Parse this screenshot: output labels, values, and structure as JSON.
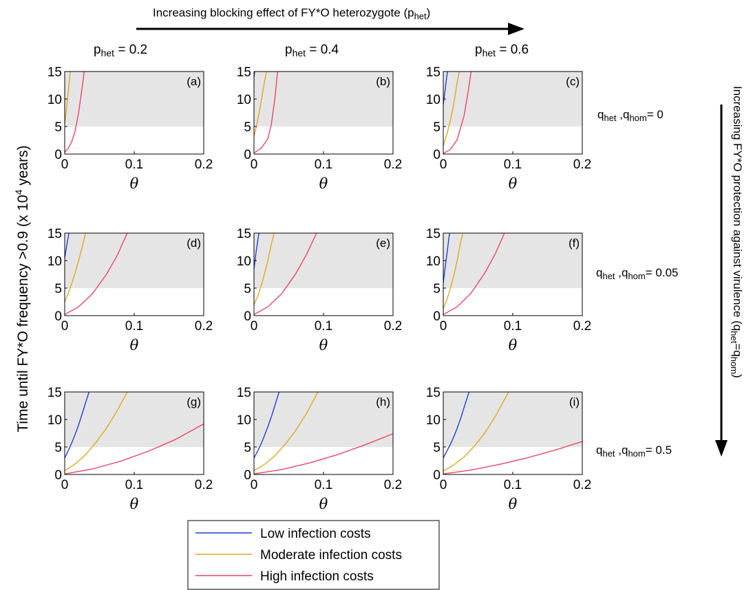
{
  "header": {
    "top_arrow_text": "Increasing blocking effect of FY*O heterozygote (p",
    "top_arrow_sub": "het",
    "top_arrow_close": ")",
    "column_labels": [
      {
        "p": "p",
        "sub": "het",
        "rest": " = 0.2"
      },
      {
        "p": "p",
        "sub": "het",
        "rest": " = 0.4"
      },
      {
        "p": "p",
        "sub": "het",
        "rest": " = 0.6"
      }
    ],
    "right_arrow_text": "Increasing FY*O protection against virulence (q",
    "right_arrow_sub1": "het",
    "right_arrow_eq": "=q",
    "right_arrow_sub2": "hom",
    "right_arrow_close": ")",
    "row_labels": [
      {
        "a": "q",
        "s1": "het",
        "mid": " ,q",
        "s2": "hom",
        "rest": "= 0"
      },
      {
        "a": "q",
        "s1": "het",
        "mid": " ,q",
        "s2": "hom",
        "rest": "= 0.05"
      },
      {
        "a": "q",
        "s1": "het",
        "mid": " ,q",
        "s2": "hom",
        "rest": "= 0.5"
      }
    ]
  },
  "y_axis_label": {
    "main": "Time until FY*O frequency >0.9 (x 10",
    "sup": "4",
    "rest": " years)"
  },
  "legend": {
    "entries": [
      {
        "label": "Low infection costs",
        "color": "#1f3fd9"
      },
      {
        "label": "Moderate infection costs",
        "color": "#e0a81e"
      },
      {
        "label": "High infection costs",
        "color": "#ee4466"
      }
    ]
  },
  "chart_data": {
    "type": "line",
    "xlabel": "θ",
    "xlim": [
      0,
      0.2
    ],
    "ylim": [
      0,
      15
    ],
    "xticks": [
      "0",
      "0.1",
      "0.2"
    ],
    "yticks": [
      "0",
      "5",
      "10",
      "15"
    ],
    "shaded_band": [
      5,
      15
    ],
    "shade_color": "#e5e5e5",
    "series_colors": [
      "#1f3fd9",
      "#e0a81e",
      "#ee4466"
    ],
    "panels": [
      {
        "label": "(a)",
        "series": [
          {
            "x": [
              0,
              0.0005
            ],
            "y": [
              15,
              15
            ]
          },
          {
            "x": [
              0,
              0.002,
              0.004,
              0.006,
              0.008
            ],
            "y": [
              5.5,
              7.5,
              10,
              12.5,
              15
            ]
          },
          {
            "x": [
              0,
              0.005,
              0.01,
              0.015,
              0.02,
              0.025,
              0.028
            ],
            "y": [
              0.3,
              1.0,
              2.2,
              4.2,
              7.5,
              12,
              15
            ]
          }
        ]
      },
      {
        "label": "(b)",
        "series": [
          {
            "x": [
              0,
              0.001
            ],
            "y": [
              14,
              15
            ]
          },
          {
            "x": [
              0,
              0.003,
              0.007,
              0.011,
              0.015,
              0.018
            ],
            "y": [
              3.2,
              4.8,
              7.2,
              10,
              13,
              15
            ]
          },
          {
            "x": [
              0,
              0.01,
              0.02,
              0.025,
              0.03,
              0.034
            ],
            "y": [
              0.2,
              1.0,
              2.8,
              5.5,
              10,
              15
            ]
          }
        ]
      },
      {
        "label": "(c)",
        "series": [
          {
            "x": [
              0,
              0.002,
              0.004,
              0.006
            ],
            "y": [
              9,
              11,
              13,
              15
            ]
          },
          {
            "x": [
              0,
              0.005,
              0.01,
              0.015,
              0.02,
              0.023
            ],
            "y": [
              1.5,
              3.5,
              6,
              9,
              13,
              15
            ]
          },
          {
            "x": [
              0,
              0.01,
              0.02,
              0.03,
              0.036,
              0.04
            ],
            "y": [
              0.1,
              0.8,
              2.6,
              7,
              11.5,
              15
            ]
          }
        ]
      },
      {
        "label": "(d)",
        "series": [
          {
            "x": [
              0,
              0.003,
              0.006
            ],
            "y": [
              10.5,
              12.8,
              15
            ]
          },
          {
            "x": [
              0,
              0.005,
              0.01,
              0.015,
              0.02,
              0.025,
              0.03
            ],
            "y": [
              2.5,
              4,
              5.8,
              7.8,
              10,
              12.4,
              15
            ]
          },
          {
            "x": [
              0,
              0.02,
              0.04,
              0.06,
              0.075,
              0.09
            ],
            "y": [
              0.2,
              1.6,
              4,
              7.5,
              10.8,
              15
            ]
          }
        ]
      },
      {
        "label": "(e)",
        "series": [
          {
            "x": [
              0,
              0.003,
              0.007
            ],
            "y": [
              8.5,
              11.5,
              15
            ]
          },
          {
            "x": [
              0,
              0.005,
              0.01,
              0.015,
              0.02,
              0.025,
              0.029
            ],
            "y": [
              2,
              3.4,
              5.3,
              7.5,
              10,
              13,
              15
            ]
          },
          {
            "x": [
              0,
              0.02,
              0.04,
              0.06,
              0.075,
              0.09
            ],
            "y": [
              0.2,
              1.6,
              4,
              7.6,
              11,
              15
            ]
          }
        ]
      },
      {
        "label": "(f)",
        "series": [
          {
            "x": [
              0,
              0.003,
              0.006,
              0.009
            ],
            "y": [
              6,
              9,
              12,
              15
            ]
          },
          {
            "x": [
              0,
              0.005,
              0.01,
              0.015,
              0.02,
              0.025,
              0.028
            ],
            "y": [
              1.3,
              2.8,
              4.8,
              7.2,
              10,
              13.4,
              15
            ]
          },
          {
            "x": [
              0,
              0.02,
              0.04,
              0.06,
              0.075,
              0.088
            ],
            "y": [
              0.2,
              1.6,
              4.1,
              7.8,
              11.3,
              15
            ]
          }
        ]
      },
      {
        "label": "(g)",
        "series": [
          {
            "x": [
              0,
              0.005,
              0.01,
              0.015,
              0.02,
              0.025,
              0.03,
              0.035
            ],
            "y": [
              3,
              4.3,
              5.7,
              7.3,
              9,
              11,
              13,
              15
            ]
          },
          {
            "x": [
              0,
              0.015,
              0.03,
              0.045,
              0.06,
              0.075,
              0.09
            ],
            "y": [
              0.7,
              1.9,
              3.6,
              5.8,
              8.4,
              11.5,
              15
            ]
          },
          {
            "x": [
              0,
              0.04,
              0.08,
              0.12,
              0.16,
              0.2
            ],
            "y": [
              0.1,
              1,
              2.4,
              4.2,
              6.4,
              9.2
            ]
          }
        ]
      },
      {
        "label": "(h)",
        "series": [
          {
            "x": [
              0,
              0.005,
              0.01,
              0.015,
              0.02,
              0.025,
              0.03,
              0.036
            ],
            "y": [
              3,
              4.2,
              5.5,
              7,
              8.7,
              10.5,
              12.5,
              15
            ]
          },
          {
            "x": [
              0,
              0.015,
              0.03,
              0.045,
              0.06,
              0.075,
              0.092
            ],
            "y": [
              0.7,
              1.8,
              3.4,
              5.5,
              8,
              11,
              15
            ]
          },
          {
            "x": [
              0,
              0.04,
              0.08,
              0.12,
              0.16,
              0.2
            ],
            "y": [
              0.1,
              0.9,
              2.1,
              3.6,
              5.4,
              7.4
            ]
          }
        ]
      },
      {
        "label": "(i)",
        "series": [
          {
            "x": [
              0,
              0.005,
              0.01,
              0.015,
              0.02,
              0.025,
              0.03,
              0.037
            ],
            "y": [
              3,
              4.2,
              5.4,
              6.8,
              8.4,
              10.2,
              12.2,
              15
            ]
          },
          {
            "x": [
              0,
              0.015,
              0.03,
              0.045,
              0.06,
              0.075,
              0.094
            ],
            "y": [
              0.6,
              1.7,
              3.2,
              5.2,
              7.6,
              10.6,
              15
            ]
          },
          {
            "x": [
              0,
              0.04,
              0.08,
              0.12,
              0.16,
              0.2
            ],
            "y": [
              0.1,
              0.8,
              1.8,
              3,
              4.4,
              6
            ]
          }
        ]
      }
    ]
  }
}
